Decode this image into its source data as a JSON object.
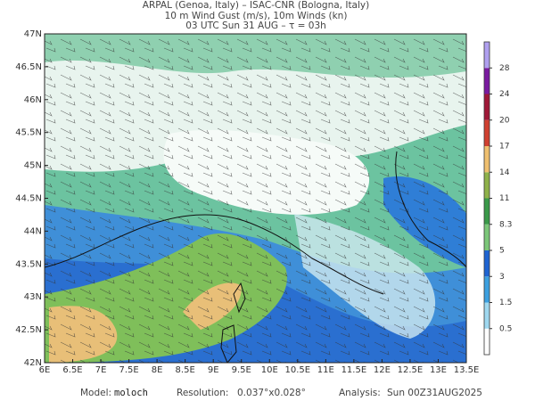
{
  "header": {
    "line1": "ARPAL (Genoa, Italy)  –  ISAC-CNR (Bologna, Italy)",
    "line2": "10 m Wind Gust (m/s), 10m Winds (kn)",
    "line3": "03 UTC Sun 31 AUG  –  τ = 03h"
  },
  "map": {
    "lon_labels": [
      "6E",
      "6.5E",
      "7E",
      "7.5E",
      "8E",
      "8.5E",
      "9E",
      "9.5E",
      "10E",
      "10.5E",
      "11E",
      "11.5E",
      "12E",
      "12.5E",
      "13E",
      "13.5E"
    ],
    "lat_labels": [
      "42N",
      "42.5N",
      "43N",
      "43.5N",
      "44N",
      "44.5N",
      "45N",
      "45.5N",
      "46N",
      "46.5N",
      "47N"
    ]
  },
  "colorbar": {
    "labels": [
      "0.5",
      "1.5",
      "3",
      "5",
      "8.3",
      "11",
      "14",
      "17",
      "20",
      "24",
      "28"
    ],
    "colors": [
      "#ffffff",
      "#9fd8f0",
      "#3ca0e0",
      "#1e64d2",
      "#7cc77a",
      "#3a9a4a",
      "#8fb24a",
      "#f0c070",
      "#d04030",
      "#a01838",
      "#7a1aa0",
      "#b0a0f0"
    ]
  },
  "footer": {
    "model_label": "Model:",
    "model": "moloch",
    "resolution_label": "Resolution:",
    "resolution": "0.037°x0.028°",
    "analysis_label": "Analysis:",
    "analysis": "Sun 00Z31AUG2025"
  }
}
